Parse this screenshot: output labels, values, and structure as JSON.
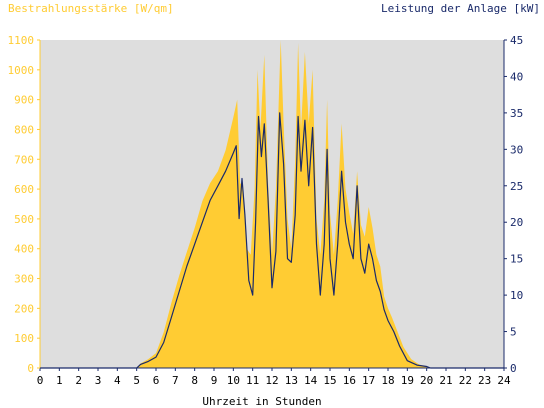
{
  "chart_data": {
    "type": "area",
    "title_left": "Bestrahlungsstärke [W/qm]",
    "title_right": "Leistung der Anlage [kW]",
    "xlabel": "Uhrzeit in Stunden",
    "xlim": [
      0,
      24
    ],
    "x_ticks": [
      "0",
      "1",
      "2",
      "3",
      "4",
      "5",
      "6",
      "7",
      "8",
      "9",
      "10",
      "11",
      "12",
      "13",
      "14",
      "15",
      "16",
      "17",
      "18",
      "19",
      "20",
      "21",
      "22",
      "23",
      "24"
    ],
    "ylim_left": [
      0,
      1100
    ],
    "y_ticks_left": [
      "0",
      "100",
      "200",
      "300",
      "400",
      "500",
      "600",
      "700",
      "800",
      "900",
      "1000",
      "1100"
    ],
    "ylim_right": [
      0,
      45
    ],
    "y_ticks_right": [
      "0",
      "5",
      "10",
      "15",
      "20",
      "25",
      "30",
      "35",
      "40",
      "45"
    ],
    "grid": true,
    "colors": {
      "background": "#dedede",
      "irradiance": "#ffcc33",
      "power": "#1a2a6a",
      "title_left": "#ffcc33",
      "title_right": "#1a2a6a",
      "axis": "#1a2a6a"
    },
    "series": [
      {
        "name": "Bestrahlungsstärke [W/qm]",
        "axis": "left",
        "points": [
          [
            0,
            0
          ],
          [
            5,
            0
          ],
          [
            5.2,
            15
          ],
          [
            5.6,
            30
          ],
          [
            6,
            50
          ],
          [
            6.4,
            120
          ],
          [
            6.8,
            220
          ],
          [
            7.2,
            310
          ],
          [
            7.6,
            390
          ],
          [
            8,
            470
          ],
          [
            8.4,
            560
          ],
          [
            8.8,
            620
          ],
          [
            9.2,
            660
          ],
          [
            9.6,
            730
          ],
          [
            10,
            840
          ],
          [
            10.2,
            900
          ],
          [
            10.35,
            620
          ],
          [
            10.5,
            610
          ],
          [
            10.7,
            400
          ],
          [
            10.9,
            380
          ],
          [
            11.1,
            600
          ],
          [
            11.25,
            1000
          ],
          [
            11.4,
            800
          ],
          [
            11.6,
            1050
          ],
          [
            11.8,
            620
          ],
          [
            12,
            380
          ],
          [
            12.2,
            600
          ],
          [
            12.45,
            1100
          ],
          [
            12.6,
            820
          ],
          [
            12.8,
            500
          ],
          [
            13,
            400
          ],
          [
            13.2,
            700
          ],
          [
            13.35,
            1090
          ],
          [
            13.5,
            800
          ],
          [
            13.7,
            1060
          ],
          [
            13.9,
            820
          ],
          [
            14.1,
            1000
          ],
          [
            14.3,
            500
          ],
          [
            14.5,
            380
          ],
          [
            14.7,
            560
          ],
          [
            14.85,
            900
          ],
          [
            15,
            520
          ],
          [
            15.2,
            380
          ],
          [
            15.4,
            560
          ],
          [
            15.6,
            820
          ],
          [
            15.8,
            600
          ],
          [
            16,
            520
          ],
          [
            16.2,
            450
          ],
          [
            16.4,
            660
          ],
          [
            16.6,
            480
          ],
          [
            16.8,
            440
          ],
          [
            17,
            540
          ],
          [
            17.2,
            470
          ],
          [
            17.4,
            380
          ],
          [
            17.6,
            340
          ],
          [
            17.8,
            240
          ],
          [
            18,
            200
          ],
          [
            18.2,
            170
          ],
          [
            18.5,
            120
          ],
          [
            18.8,
            70
          ],
          [
            19.2,
            30
          ],
          [
            19.6,
            12
          ],
          [
            20,
            3
          ],
          [
            20.2,
            0
          ],
          [
            24,
            0
          ]
        ]
      },
      {
        "name": "Leistung der Anlage [kW]",
        "axis": "right",
        "points": [
          [
            0,
            0
          ],
          [
            5,
            0
          ],
          [
            5.2,
            0.5
          ],
          [
            5.6,
            0.9
          ],
          [
            6,
            1.5
          ],
          [
            6.4,
            3.5
          ],
          [
            6.8,
            7
          ],
          [
            7.2,
            10.5
          ],
          [
            7.6,
            14
          ],
          [
            8,
            17
          ],
          [
            8.4,
            20
          ],
          [
            8.8,
            23
          ],
          [
            9.2,
            25
          ],
          [
            9.6,
            27
          ],
          [
            10,
            29.5
          ],
          [
            10.15,
            30.5
          ],
          [
            10.3,
            20.5
          ],
          [
            10.45,
            26
          ],
          [
            10.6,
            21
          ],
          [
            10.8,
            12
          ],
          [
            11,
            10
          ],
          [
            11.15,
            20
          ],
          [
            11.3,
            34.5
          ],
          [
            11.45,
            29
          ],
          [
            11.6,
            33.5
          ],
          [
            11.8,
            23
          ],
          [
            12,
            11
          ],
          [
            12.2,
            16
          ],
          [
            12.4,
            35
          ],
          [
            12.6,
            28
          ],
          [
            12.8,
            15
          ],
          [
            13,
            14.5
          ],
          [
            13.2,
            21
          ],
          [
            13.35,
            34.5
          ],
          [
            13.5,
            27
          ],
          [
            13.7,
            34
          ],
          [
            13.9,
            25
          ],
          [
            14.1,
            33
          ],
          [
            14.3,
            17
          ],
          [
            14.5,
            10
          ],
          [
            14.7,
            17
          ],
          [
            14.85,
            30
          ],
          [
            15,
            15
          ],
          [
            15.2,
            10
          ],
          [
            15.4,
            17
          ],
          [
            15.6,
            27
          ],
          [
            15.8,
            20
          ],
          [
            16,
            17
          ],
          [
            16.2,
            15
          ],
          [
            16.4,
            25
          ],
          [
            16.6,
            15
          ],
          [
            16.8,
            13
          ],
          [
            17,
            17
          ],
          [
            17.2,
            15
          ],
          [
            17.4,
            12
          ],
          [
            17.6,
            10.5
          ],
          [
            17.8,
            8
          ],
          [
            18,
            6.5
          ],
          [
            18.3,
            5
          ],
          [
            18.6,
            3
          ],
          [
            19,
            1
          ],
          [
            19.5,
            0.4
          ],
          [
            20,
            0.2
          ],
          [
            20.2,
            0
          ],
          [
            24,
            0
          ]
        ]
      }
    ]
  }
}
